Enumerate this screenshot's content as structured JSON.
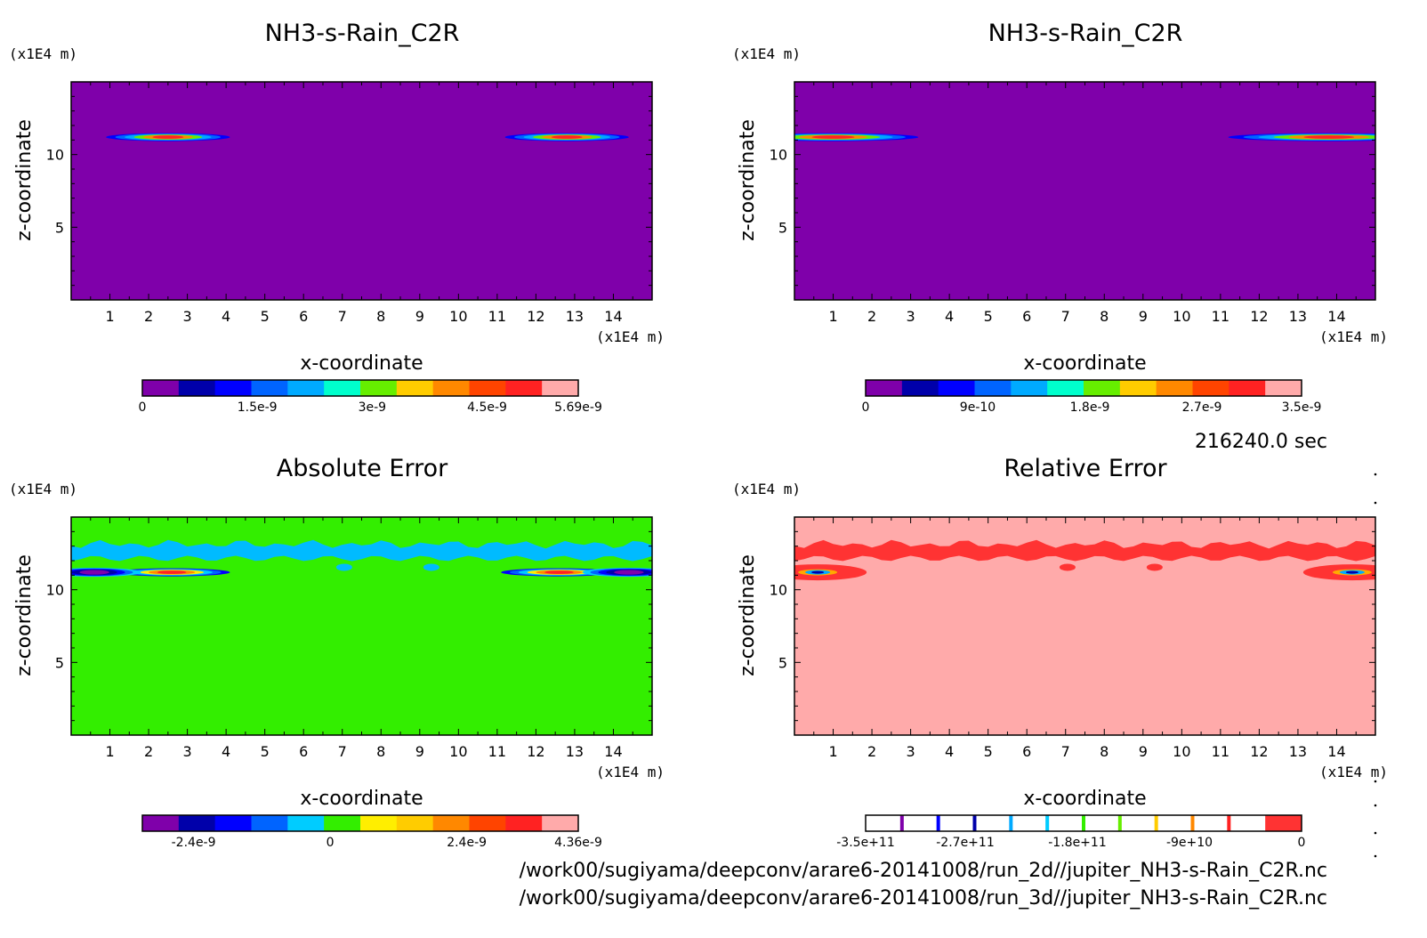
{
  "time_label": "216240.0 sec",
  "files": [
    "/work00/sugiyama/deepconv/arare6-20141008/run_2d//jupiter_NH3-s-Rain_C2R.nc",
    "/work00/sugiyama/deepconv/arare6-20141008/run_3d//jupiter_NH3-s-Rain_C2R.nc"
  ],
  "chart_data": [
    {
      "type": "heatmap",
      "title": "NH3-s-Rain_C2R",
      "xlabel": "x-coordinate",
      "ylabel": "z-coordinate",
      "x_unit": "(x1E4 m)",
      "y_unit": "(x1E4 m)",
      "xlim": [
        0,
        15
      ],
      "ylim": [
        0,
        15
      ],
      "x_ticks": [
        1,
        2,
        3,
        4,
        5,
        6,
        7,
        8,
        9,
        10,
        11,
        12,
        13,
        14
      ],
      "y_ticks": [
        5,
        10
      ],
      "background": "#7f00aa",
      "features": [
        {
          "kind": "blob",
          "x_center": 2.5,
          "z_center": 11.2,
          "x_halfwidth": 1.6,
          "peak": 5.69e-09
        },
        {
          "kind": "blob",
          "x_center": 12.8,
          "z_center": 11.2,
          "x_halfwidth": 1.6,
          "peak": 5.69e-09
        }
      ],
      "colorbar": {
        "min": 0,
        "max": 5.69e-09,
        "colors": [
          "#7f00aa",
          "#0000aa",
          "#0000ff",
          "#0064ff",
          "#00aaff",
          "#00ffcc",
          "#66ee00",
          "#ffcc00",
          "#ff8800",
          "#ff4400",
          "#ff2222",
          "#ffaaaa"
        ],
        "tick_values": [
          0,
          1.5e-09,
          3e-09,
          4.5e-09,
          5.69e-09
        ],
        "tick_labels": [
          "0",
          "1.5e-9",
          "3e-9",
          "4.5e-9",
          "5.69e-9"
        ]
      }
    },
    {
      "type": "heatmap",
      "title": "NH3-s-Rain_C2R",
      "xlabel": "x-coordinate",
      "ylabel": "z-coordinate",
      "x_unit": "(x1E4 m)",
      "y_unit": "(x1E4 m)",
      "xlim": [
        0,
        15
      ],
      "ylim": [
        0,
        15
      ],
      "x_ticks": [
        1,
        2,
        3,
        4,
        5,
        6,
        7,
        8,
        9,
        10,
        11,
        12,
        13,
        14
      ],
      "y_ticks": [
        5,
        10
      ],
      "background": "#7f00aa",
      "features": [
        {
          "kind": "blob",
          "x_center": 1.0,
          "z_center": 11.2,
          "x_halfwidth": 2.2,
          "peak": 3.5e-09
        },
        {
          "kind": "blob",
          "x_center": 13.8,
          "z_center": 11.2,
          "x_halfwidth": 2.6,
          "peak": 3.5e-09
        }
      ],
      "colorbar": {
        "min": 0,
        "max": 3.5e-09,
        "colors": [
          "#7f00aa",
          "#0000aa",
          "#0000ff",
          "#0064ff",
          "#00aaff",
          "#00ffcc",
          "#66ee00",
          "#ffcc00",
          "#ff8800",
          "#ff4400",
          "#ff2222",
          "#ffaaaa"
        ],
        "tick_values": [
          0,
          9e-10,
          1.8e-09,
          2.7e-09,
          3.5e-09
        ],
        "tick_labels": [
          "0",
          "9e-10",
          "1.8e-9",
          "2.7e-9",
          "3.5e-9"
        ]
      }
    },
    {
      "type": "heatmap",
      "title": "Absolute Error",
      "xlabel": "x-coordinate",
      "ylabel": "z-coordinate",
      "x_unit": "(x1E4 m)",
      "y_unit": "(x1E4 m)",
      "xlim": [
        0,
        15
      ],
      "ylim": [
        0,
        15
      ],
      "x_ticks": [
        1,
        2,
        3,
        4,
        5,
        6,
        7,
        8,
        9,
        10,
        11,
        12,
        13,
        14
      ],
      "y_ticks": [
        5,
        10
      ],
      "background": "#33ee00",
      "features": [
        {
          "kind": "band",
          "z_center": 12.4,
          "color": "#00bbff"
        },
        {
          "kind": "blob",
          "x_center": 2.6,
          "z_center": 11.2,
          "x_halfwidth": 1.5,
          "peak": 4.36e-09
        },
        {
          "kind": "blob",
          "x_center": 12.6,
          "z_center": 11.2,
          "x_halfwidth": 1.5,
          "peak": 4.36e-09
        },
        {
          "kind": "neg",
          "x_center": 0.6,
          "z_center": 11.2,
          "x_halfwidth": 1.2,
          "peak": -2.4e-09
        },
        {
          "kind": "neg",
          "x_center": 14.4,
          "z_center": 11.2,
          "x_halfwidth": 1.2,
          "peak": -2.4e-09
        }
      ],
      "colorbar": {
        "min": -3.3e-09,
        "max": 4.36e-09,
        "colors": [
          "#7f00aa",
          "#0000aa",
          "#0000ff",
          "#0064ff",
          "#00ccff",
          "#33ee00",
          "#ffee00",
          "#ffcc00",
          "#ff8800",
          "#ff4400",
          "#ff2222",
          "#ffaaaa"
        ],
        "tick_values": [
          -2.4e-09,
          0,
          2.4e-09,
          4.36e-09
        ],
        "tick_labels": [
          "-2.4e-9",
          "0",
          "2.4e-9",
          "4.36e-9"
        ]
      }
    },
    {
      "type": "heatmap",
      "title": "Relative Error",
      "xlabel": "x-coordinate",
      "ylabel": "z-coordinate",
      "x_unit": "(x1E4 m)",
      "y_unit": "(x1E4 m)",
      "xlim": [
        0,
        15
      ],
      "ylim": [
        0,
        15
      ],
      "x_ticks": [
        1,
        2,
        3,
        4,
        5,
        6,
        7,
        8,
        9,
        10,
        11,
        12,
        13,
        14
      ],
      "y_ticks": [
        5,
        10
      ],
      "background": "#ffaaaa",
      "features": [
        {
          "kind": "band",
          "z_center": 12.4,
          "color": "#ff3333"
        },
        {
          "kind": "rel",
          "x_center": 0.6,
          "z_center": 11.2
        },
        {
          "kind": "rel",
          "x_center": 14.4,
          "z_center": 11.2
        }
      ],
      "colorbar": {
        "min": -350000000000.0,
        "max": 0,
        "colors": [
          "#ffffff",
          "#ffffff",
          "#ffffff",
          "#ffffff",
          "#ffffff",
          "#ffffff",
          "#ffffff",
          "#ffffff",
          "#ffffff",
          "#ffffff",
          "#ffffff",
          "#ff3333"
        ],
        "line_colors": [
          "#7f00aa",
          "#0000ff",
          "#0000aa",
          "#00aaff",
          "#00ccff",
          "#33ee00",
          "#66ee00",
          "#ffcc00",
          "#ff8800",
          "#ff2222"
        ],
        "tick_values": [
          -350000000000.0,
          -270000000000.0,
          -180000000000.0,
          -90000000000.0,
          0
        ],
        "tick_labels": [
          "-3.5e+11",
          "-2.7e+11",
          "-1.8e+11",
          "-9e+10",
          "0"
        ]
      }
    }
  ]
}
